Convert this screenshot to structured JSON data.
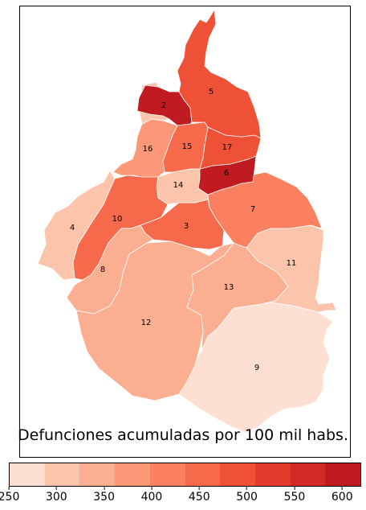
{
  "title": "Defunciones acumuladas por 100 mil habs.",
  "colorbar": {
    "min": 250,
    "max": 620,
    "ticks": [
      "250",
      "300",
      "350",
      "400",
      "450",
      "500",
      "550",
      "600"
    ],
    "tick_values": [
      250,
      300,
      350,
      400,
      450,
      500,
      550,
      600
    ],
    "colors": [
      "#fee0d2",
      "#fcc5ab",
      "#fcae91",
      "#fc9777",
      "#fb8060",
      "#f6694b",
      "#ef5137",
      "#e33a2b",
      "#d22a25",
      "#c01b20"
    ]
  },
  "chart_data": {
    "type": "choropleth",
    "value_label": "Defunciones acumuladas por 100 mil habs.",
    "regions": [
      {
        "id": "1",
        "label": "",
        "value": 300
      },
      {
        "id": "2",
        "label": "2",
        "value": 590
      },
      {
        "id": "3",
        "label": "3",
        "value": 440
      },
      {
        "id": "4",
        "label": "4",
        "value": 290
      },
      {
        "id": "5",
        "label": "5",
        "value": 490
      },
      {
        "id": "6",
        "label": "6",
        "value": 600
      },
      {
        "id": "7",
        "label": "7",
        "value": 420
      },
      {
        "id": "8",
        "label": "8",
        "value": 340
      },
      {
        "id": "9",
        "label": "9",
        "value": 265
      },
      {
        "id": "10",
        "label": "10",
        "value": 440
      },
      {
        "id": "11",
        "label": "11",
        "value": 300
      },
      {
        "id": "12",
        "label": "12",
        "value": 330
      },
      {
        "id": "13",
        "label": "13",
        "value": 350
      },
      {
        "id": "14",
        "label": "14",
        "value": 320
      },
      {
        "id": "15",
        "label": "15",
        "value": 470
      },
      {
        "id": "16",
        "label": "16",
        "value": 370
      },
      {
        "id": "17",
        "label": "17",
        "value": 490
      }
    ]
  }
}
